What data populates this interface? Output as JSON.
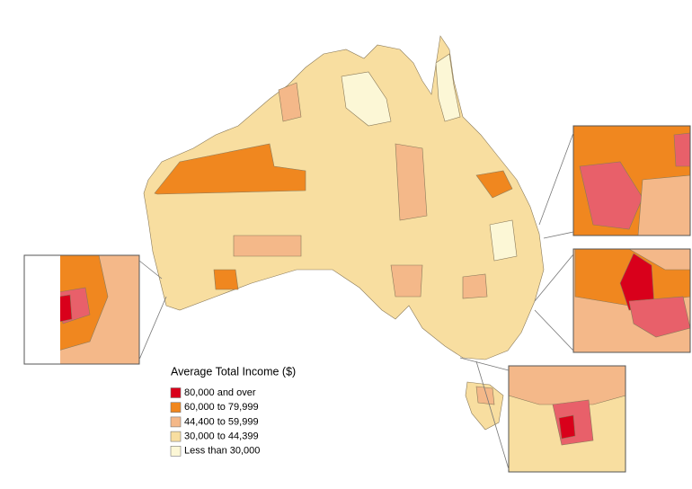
{
  "legend": {
    "title": "Average Total Income ($)",
    "items": [
      {
        "label": "80,000 and over",
        "color": "#d9001b"
      },
      {
        "label": "60,000 to 79,999",
        "color": "#f0871f"
      },
      {
        "label": "44,400 to 59,999",
        "color": "#f4b889"
      },
      {
        "label": "30,000 to 44,399",
        "color": "#f8dea0"
      },
      {
        "label": "Less than 30,000",
        "color": "#fcf7d6"
      }
    ]
  }
}
